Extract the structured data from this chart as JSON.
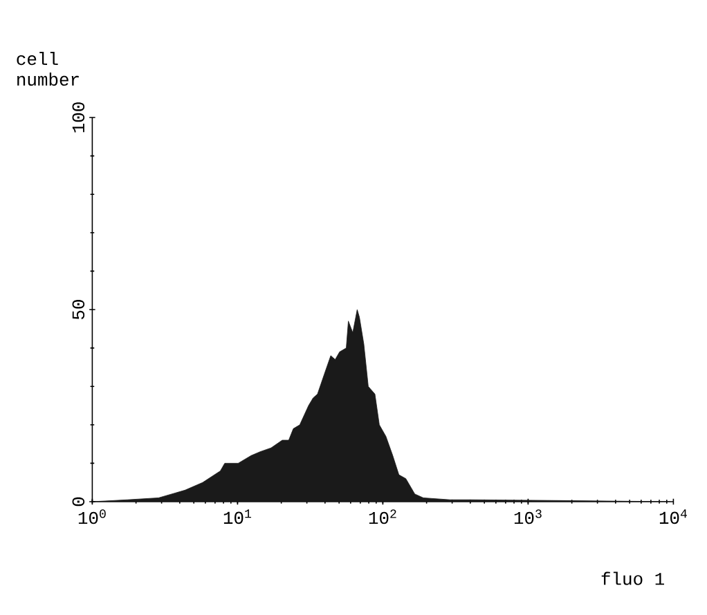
{
  "chart_data": {
    "type": "area",
    "xlabel": "fluo 1",
    "ylabel": "cell number",
    "log": "x",
    "color": "#1a1a1a",
    "x": [
      1,
      1.75,
      2.86,
      4.35,
      5.75,
      7.61,
      8.16,
      10.1,
      12.4,
      14.3,
      17.0,
      20.3,
      22.5,
      24.2,
      26.8,
      30.8,
      33.1,
      35.5,
      39.4,
      43.8,
      47.0,
      50.4,
      56.0,
      57.9,
      62.1,
      66.6,
      69.0,
      74.0,
      79.4,
      88.2,
      94.6,
      105,
      117,
      129,
      144,
      166,
      190,
      290,
      411,
      1667,
      9500
    ],
    "values": [
      0,
      0.5,
      1,
      3,
      5,
      8,
      10,
      10,
      12,
      13,
      14,
      16,
      16,
      19,
      20,
      25,
      27,
      28,
      33,
      38,
      37,
      39,
      40,
      47,
      44,
      50,
      48,
      41,
      30,
      28,
      20,
      17,
      12,
      7,
      6,
      2,
      1,
      0.5,
      0.5,
      0.3,
      0
    ],
    "xlim": [
      1,
      10000
    ],
    "xticks": [
      {
        "value": 1,
        "label": "10$^{0}$"
      },
      {
        "value": 10,
        "label": "10$^{1}$"
      },
      {
        "value": 100,
        "label": "10$^{2}$"
      },
      {
        "value": 1000,
        "label": "10$^{3}$"
      },
      {
        "value": 10000,
        "label": "10$^{4}$"
      }
    ],
    "ylim": [
      0,
      100
    ],
    "yticks": [
      0,
      50,
      100
    ]
  }
}
